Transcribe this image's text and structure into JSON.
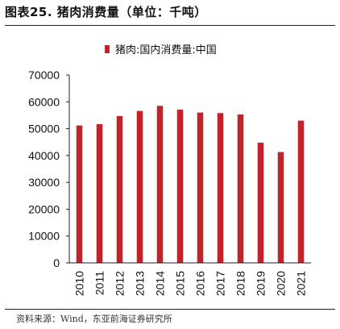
{
  "figure": {
    "title": "图表25.  猪肉消费量（单位：千吨）",
    "source": "资料来源：Wind，东亚前海证券研究所"
  },
  "colors": {
    "bar": "#c0232a",
    "axis": "#222222"
  },
  "chart_data": {
    "type": "bar",
    "categories": [
      "2010",
      "2011",
      "2012",
      "2013",
      "2014",
      "2015",
      "2016",
      "2017",
      "2018",
      "2019",
      "2020",
      "2021"
    ],
    "series": [
      {
        "name": "猪肉:国内消费量:中国",
        "values": [
          51200,
          51700,
          54700,
          56600,
          58500,
          57100,
          56000,
          55800,
          55300,
          44800,
          41300,
          53000
        ]
      }
    ],
    "yticks": [
      "0",
      "10000",
      "20000",
      "30000",
      "40000",
      "50000",
      "60000",
      "70000"
    ],
    "ylim": [
      0,
      70000
    ],
    "grid": false,
    "legend_position": "top-center"
  }
}
